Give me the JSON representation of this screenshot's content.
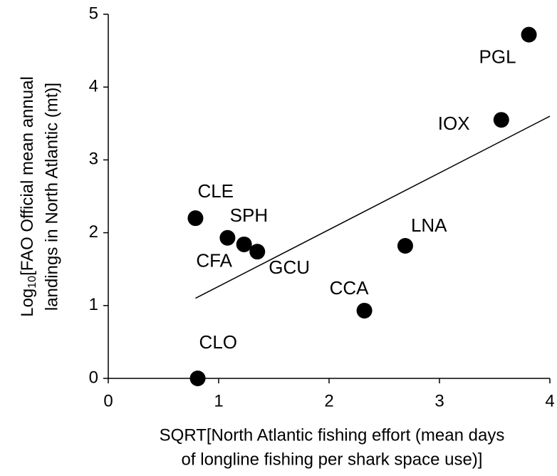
{
  "chart_data": {
    "type": "scatter",
    "xlabel": [
      "SQRT[North Atlantic fishing effort (mean days",
      "of longline fishing per shark space use)]"
    ],
    "ylabel": {
      "prefix": "Log",
      "subscript": "10",
      "line1": "[FAO Official mean annual",
      "line2": "landings in North Atlantic (mt)]"
    },
    "labels": [
      "PGL",
      "IOX",
      "CLE",
      "CFA",
      "SPH",
      "GCU",
      "LNA",
      "CCA",
      "CLO"
    ],
    "x": [
      3.81,
      3.56,
      0.79,
      1.08,
      1.23,
      1.35,
      2.69,
      2.32,
      0.81
    ],
    "values": [
      4.72,
      3.55,
      2.2,
      1.93,
      1.84,
      1.74,
      1.82,
      0.93,
      0
    ],
    "color": "#000000",
    "trend_line": {
      "x": [
        0.79,
        4.0
      ],
      "values": [
        1.1,
        3.6
      ]
    },
    "xlim": [
      0,
      4
    ],
    "xticks": [
      0,
      1,
      2,
      3,
      4
    ],
    "ylim": [
      0,
      5
    ],
    "yticks": [
      0,
      1,
      2,
      3,
      4,
      5
    ]
  }
}
